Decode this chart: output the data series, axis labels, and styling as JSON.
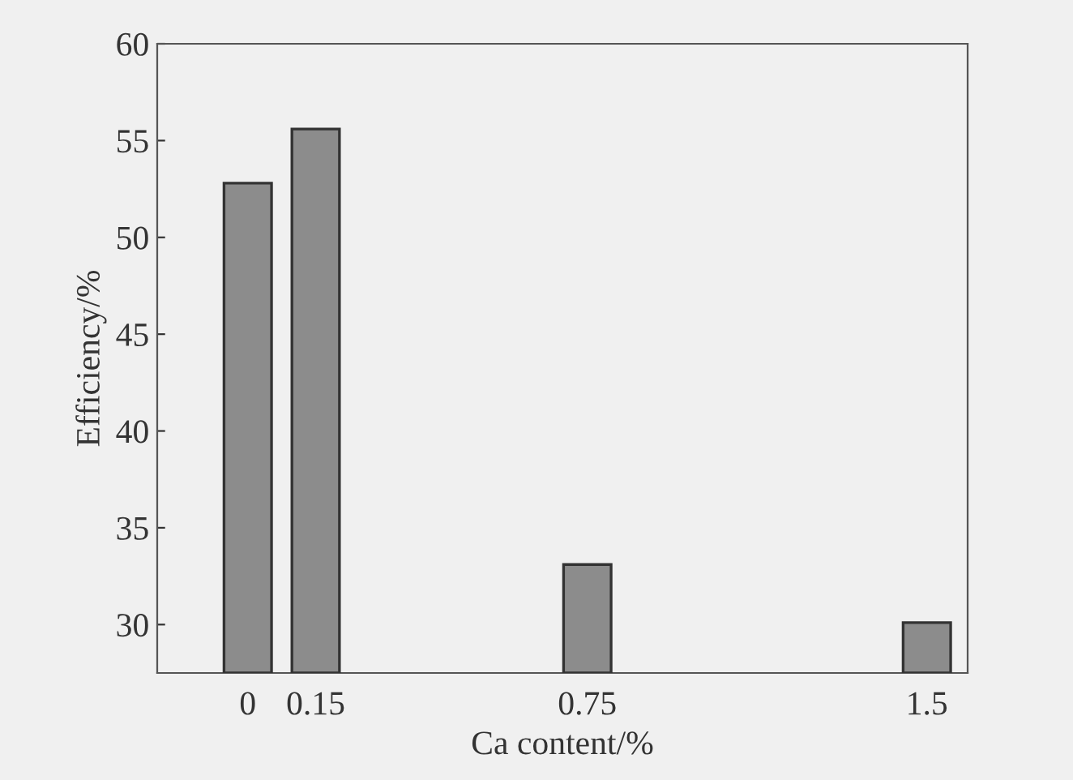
{
  "chart_data": {
    "type": "bar",
    "xlabel": "Ca content/%",
    "ylabel": "Efficiency/%",
    "x": [
      0,
      0.15,
      0.75,
      1.5
    ],
    "series": [
      {
        "color": "#8c8c8c",
        "values": [
          52.8,
          55.6,
          33.1,
          30.1
        ]
      }
    ],
    "xlim": [
      -0.2,
      1.59
    ],
    "xticks": [
      0,
      0.15,
      0.75,
      1.5
    ],
    "ylim": [
      27.5,
      60
    ],
    "yticks": [
      30,
      35,
      40,
      45,
      50,
      55,
      60
    ],
    "grid": false,
    "legend": false
  }
}
